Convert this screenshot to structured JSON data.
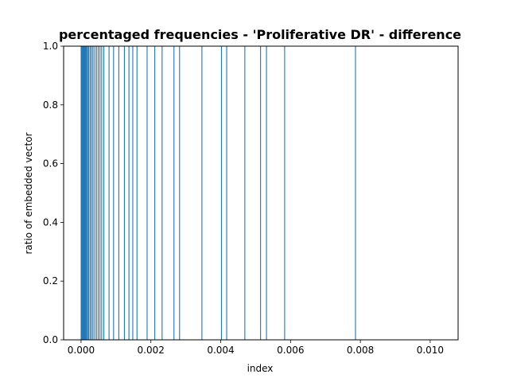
{
  "chart_data": {
    "type": "bar",
    "title": "percentaged frequencies - 'Proliferative DR' - difference",
    "xlabel": "index",
    "ylabel": "ratio of embedded vector",
    "xlim": [
      -0.0005,
      0.0108
    ],
    "ylim": [
      0.0,
      1.0
    ],
    "grid": false,
    "bar_color": "#1f77b4",
    "x_ticks": [
      0.0,
      0.002,
      0.004,
      0.006,
      0.008,
      0.01
    ],
    "x_tick_labels": [
      "0.000",
      "0.002",
      "0.004",
      "0.006",
      "0.008",
      "0.010"
    ],
    "y_ticks": [
      0.0,
      0.2,
      0.4,
      0.6,
      0.8,
      1.0
    ],
    "y_tick_labels": [
      "0.0",
      "0.2",
      "0.4",
      "0.6",
      "0.8",
      "1.0"
    ],
    "x": [
      0.0,
      2e-05,
      4e-05,
      6e-05,
      8e-05,
      0.0001,
      0.00012,
      0.00014,
      0.00016,
      0.00019,
      0.00022,
      0.00026,
      0.0003,
      0.00034,
      0.00039,
      0.00044,
      0.00049,
      0.00054,
      0.00059,
      0.00065,
      0.0008,
      0.00093,
      0.00108,
      0.00124,
      0.00137,
      0.00148,
      0.0016,
      0.00189,
      0.00211,
      0.00232,
      0.00266,
      0.00282,
      0.00346,
      0.00402,
      0.00417,
      0.00469,
      0.00514,
      0.00531,
      0.00583,
      0.00786
    ],
    "values": [
      1,
      1,
      1,
      1,
      1,
      1,
      1,
      1,
      1,
      1,
      1,
      1,
      1,
      1,
      1,
      1,
      1,
      1,
      1,
      1,
      1,
      1,
      1,
      1,
      1,
      1,
      1,
      1,
      1,
      1,
      1,
      1,
      1,
      1,
      1,
      1,
      1,
      1,
      1,
      1
    ]
  }
}
